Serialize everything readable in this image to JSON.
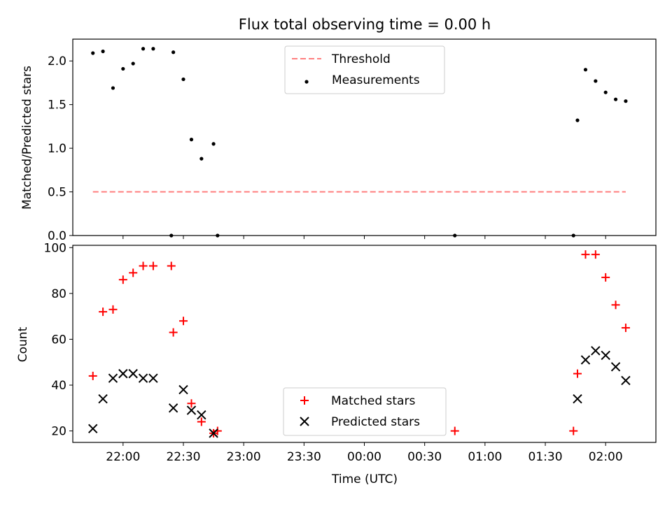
{
  "chart_data": [
    {
      "type": "scatter",
      "title": "Flux total observing time = 0.00 h",
      "ylabel": "Matched/Predicted stars",
      "xlabel": "",
      "xlim": [
        "21:35",
        "02:25"
      ],
      "ylim": [
        0,
        2.25
      ],
      "yticks": [
        0.0,
        0.5,
        1.0,
        1.5,
        2.0
      ],
      "ytick_labels": [
        "0.0",
        "0.5",
        "1.0",
        "1.5",
        "2.0"
      ],
      "legend": {
        "placement": "upper-center",
        "entries": [
          "Threshold",
          "Measurements"
        ]
      },
      "colors": {
        "threshold": "#ff7f7f",
        "measurements": "#000000"
      },
      "series": [
        {
          "name": "Threshold",
          "style": "dashed-line",
          "x": [
            "21:45",
            "02:10"
          ],
          "values": [
            0.5,
            0.5
          ]
        },
        {
          "name": "Measurements",
          "style": "dots",
          "x": [
            "21:45",
            "21:50",
            "21:55",
            "22:00",
            "22:05",
            "22:10",
            "22:15",
            "22:24",
            "22:25",
            "22:30",
            "22:34",
            "22:39",
            "22:45",
            "22:47",
            "00:45",
            "01:44",
            "01:46",
            "01:50",
            "01:55",
            "02:00",
            "02:05",
            "02:10"
          ],
          "values": [
            2.09,
            2.11,
            1.69,
            1.91,
            1.97,
            2.14,
            2.14,
            0.0,
            2.1,
            1.79,
            1.1,
            0.88,
            1.05,
            0.0,
            0.0,
            0.0,
            1.32,
            1.9,
            1.77,
            1.64,
            1.56,
            1.54
          ]
        }
      ]
    },
    {
      "type": "scatter",
      "title": "",
      "ylabel": "Count",
      "xlabel": "Time (UTC)",
      "xlim": [
        "21:35",
        "02:25"
      ],
      "ylim": [
        15,
        101
      ],
      "yticks": [
        20,
        40,
        60,
        80,
        100
      ],
      "ytick_labels": [
        "20",
        "40",
        "60",
        "80",
        "100"
      ],
      "xticks": [
        "22:00",
        "22:30",
        "23:00",
        "23:30",
        "00:00",
        "00:30",
        "01:00",
        "01:30",
        "02:00"
      ],
      "legend": {
        "placement": "lower-center",
        "entries": [
          "Matched stars",
          "Predicted stars"
        ]
      },
      "colors": {
        "matched": "#ff0000",
        "predicted": "#000000"
      },
      "series": [
        {
          "name": "Matched stars",
          "marker": "plus",
          "x": [
            "21:45",
            "21:50",
            "21:55",
            "22:00",
            "22:05",
            "22:10",
            "22:15",
            "22:24",
            "22:25",
            "22:30",
            "22:34",
            "22:39",
            "22:45",
            "22:47",
            "00:45",
            "01:44",
            "01:46",
            "01:50",
            "01:55",
            "02:00",
            "02:05",
            "02:10"
          ],
          "values": [
            44,
            72,
            73,
            86,
            89,
            92,
            92,
            92,
            63,
            68,
            32,
            24,
            19,
            20,
            20,
            20,
            45,
            97,
            97,
            87,
            75,
            65
          ]
        },
        {
          "name": "Predicted stars",
          "marker": "x",
          "x": [
            "21:45",
            "21:50",
            "21:55",
            "22:00",
            "22:05",
            "22:10",
            "22:15",
            "22:25",
            "22:30",
            "22:34",
            "22:39",
            "22:45",
            "01:46",
            "01:50",
            "01:55",
            "02:00",
            "02:05",
            "02:10"
          ],
          "values": [
            21,
            34,
            43,
            45,
            45,
            43,
            43,
            30,
            38,
            29,
            27,
            19,
            34,
            51,
            55,
            53,
            48,
            42
          ]
        }
      ]
    }
  ]
}
